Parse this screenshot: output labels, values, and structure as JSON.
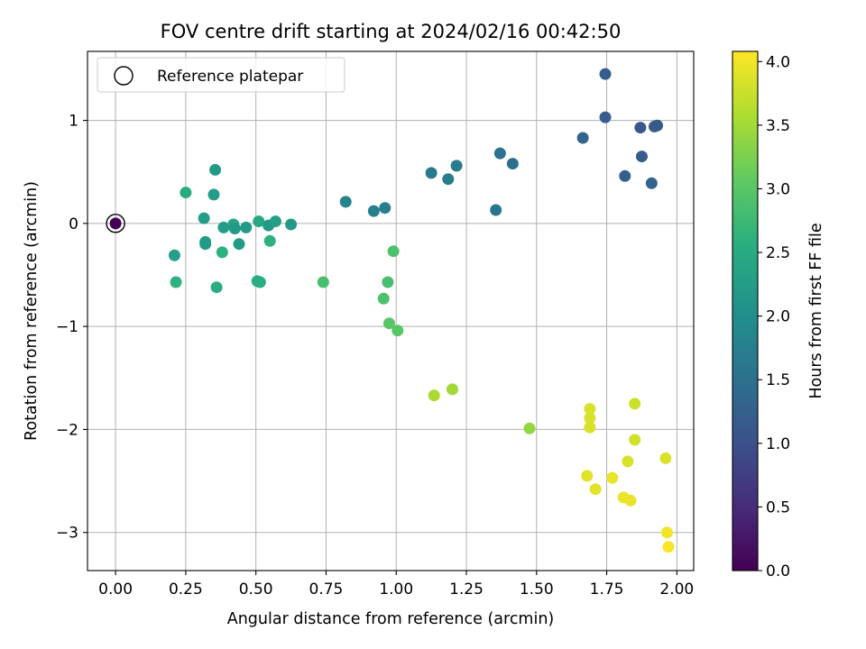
{
  "chart_data": {
    "type": "scatter",
    "title": "FOV centre drift starting at 2024/02/16 00:42:50",
    "xlabel": "Angular distance from reference (arcmin)",
    "ylabel": "Rotation from reference (arcmin)",
    "xlim": [
      -0.1,
      2.06
    ],
    "ylim": [
      -3.37,
      1.67
    ],
    "xticks": [
      0.0,
      0.25,
      0.5,
      0.75,
      1.0,
      1.25,
      1.5,
      1.75,
      2.0
    ],
    "xtick_labels": [
      "0.00",
      "0.25",
      "0.50",
      "0.75",
      "1.00",
      "1.25",
      "1.50",
      "1.75",
      "2.00"
    ],
    "yticks": [
      1,
      0,
      -1,
      -2,
      -3
    ],
    "ytick_labels": [
      "1",
      "0",
      "−1",
      "−2",
      "−3"
    ],
    "grid": true,
    "legend": {
      "location": "upper-left",
      "entries": [
        "Reference platepar"
      ]
    },
    "reference_point": {
      "x": 0.0,
      "y": 0.0,
      "hours": 0.0
    },
    "colorbar": {
      "label": "Hours from first FF file",
      "colormap": "viridis",
      "range": [
        0.0,
        4.08
      ],
      "ticks": [
        0.0,
        0.5,
        1.0,
        1.5,
        2.0,
        2.5,
        3.0,
        3.5,
        4.0
      ],
      "tick_labels": [
        "0.0",
        "0.5",
        "1.0",
        "1.5",
        "2.0",
        "2.5",
        "3.0",
        "3.5",
        "4.0"
      ]
    },
    "points": [
      {
        "x": 1.745,
        "y": 1.45,
        "hours": 1.2
      },
      {
        "x": 1.745,
        "y": 1.03,
        "hours": 1.2
      },
      {
        "x": 1.87,
        "y": 0.93,
        "hours": 1.1
      },
      {
        "x": 1.92,
        "y": 0.94,
        "hours": 1.15
      },
      {
        "x": 1.93,
        "y": 0.95,
        "hours": 1.15
      },
      {
        "x": 1.665,
        "y": 0.83,
        "hours": 1.3
      },
      {
        "x": 1.875,
        "y": 0.65,
        "hours": 1.2
      },
      {
        "x": 1.815,
        "y": 0.46,
        "hours": 1.25
      },
      {
        "x": 1.91,
        "y": 0.39,
        "hours": 1.3
      },
      {
        "x": 1.37,
        "y": 0.68,
        "hours": 1.55
      },
      {
        "x": 1.415,
        "y": 0.58,
        "hours": 1.5
      },
      {
        "x": 1.355,
        "y": 0.13,
        "hours": 1.6
      },
      {
        "x": 1.215,
        "y": 0.56,
        "hours": 1.7
      },
      {
        "x": 1.125,
        "y": 0.49,
        "hours": 1.65
      },
      {
        "x": 1.185,
        "y": 0.43,
        "hours": 1.7
      },
      {
        "x": 0.82,
        "y": 0.21,
        "hours": 1.8
      },
      {
        "x": 0.92,
        "y": 0.12,
        "hours": 1.75
      },
      {
        "x": 0.96,
        "y": 0.15,
        "hours": 1.75
      },
      {
        "x": 0.355,
        "y": 0.52,
        "hours": 2.2
      },
      {
        "x": 0.25,
        "y": 0.3,
        "hours": 2.5
      },
      {
        "x": 0.35,
        "y": 0.28,
        "hours": 2.25
      },
      {
        "x": 0.315,
        "y": 0.05,
        "hours": 2.25
      },
      {
        "x": 0.385,
        "y": -0.04,
        "hours": 2.25
      },
      {
        "x": 0.42,
        "y": -0.01,
        "hours": 2.4
      },
      {
        "x": 0.425,
        "y": -0.05,
        "hours": 2.2
      },
      {
        "x": 0.465,
        "y": -0.04,
        "hours": 2.2
      },
      {
        "x": 0.51,
        "y": 0.02,
        "hours": 2.45
      },
      {
        "x": 0.545,
        "y": -0.02,
        "hours": 2.2
      },
      {
        "x": 0.57,
        "y": 0.02,
        "hours": 2.3
      },
      {
        "x": 0.625,
        "y": -0.01,
        "hours": 2.2
      },
      {
        "x": 0.32,
        "y": -0.18,
        "hours": 2.25
      },
      {
        "x": 0.32,
        "y": -0.2,
        "hours": 2.2
      },
      {
        "x": 0.44,
        "y": -0.2,
        "hours": 2.2
      },
      {
        "x": 0.55,
        "y": -0.17,
        "hours": 2.6
      },
      {
        "x": 0.38,
        "y": -0.28,
        "hours": 2.6
      },
      {
        "x": 0.21,
        "y": -0.31,
        "hours": 2.3
      },
      {
        "x": 0.215,
        "y": -0.57,
        "hours": 2.6
      },
      {
        "x": 0.36,
        "y": -0.62,
        "hours": 2.55
      },
      {
        "x": 0.505,
        "y": -0.56,
        "hours": 2.55
      },
      {
        "x": 0.515,
        "y": -0.57,
        "hours": 2.55
      },
      {
        "x": 0.74,
        "y": -0.57,
        "hours": 2.85
      },
      {
        "x": 0.99,
        "y": -0.27,
        "hours": 2.9
      },
      {
        "x": 0.97,
        "y": -0.57,
        "hours": 2.85
      },
      {
        "x": 0.955,
        "y": -0.73,
        "hours": 2.9
      },
      {
        "x": 0.975,
        "y": -0.97,
        "hours": 3.0
      },
      {
        "x": 1.005,
        "y": -1.04,
        "hours": 3.0
      },
      {
        "x": 1.135,
        "y": -1.67,
        "hours": 3.55
      },
      {
        "x": 1.2,
        "y": -1.61,
        "hours": 3.5
      },
      {
        "x": 1.475,
        "y": -1.99,
        "hours": 3.4
      },
      {
        "x": 1.69,
        "y": -1.8,
        "hours": 3.85
      },
      {
        "x": 1.69,
        "y": -1.89,
        "hours": 3.85
      },
      {
        "x": 1.69,
        "y": -1.98,
        "hours": 3.85
      },
      {
        "x": 1.85,
        "y": -1.75,
        "hours": 3.75
      },
      {
        "x": 1.85,
        "y": -2.1,
        "hours": 3.8
      },
      {
        "x": 1.96,
        "y": -2.28,
        "hours": 3.85
      },
      {
        "x": 1.825,
        "y": -2.31,
        "hours": 3.85
      },
      {
        "x": 1.68,
        "y": -2.45,
        "hours": 3.9
      },
      {
        "x": 1.77,
        "y": -2.47,
        "hours": 3.95
      },
      {
        "x": 1.71,
        "y": -2.58,
        "hours": 3.9
      },
      {
        "x": 1.81,
        "y": -2.66,
        "hours": 3.95
      },
      {
        "x": 1.835,
        "y": -2.69,
        "hours": 3.95
      },
      {
        "x": 1.965,
        "y": -3.0,
        "hours": 4.0
      },
      {
        "x": 1.97,
        "y": -3.14,
        "hours": 4.05
      }
    ]
  }
}
